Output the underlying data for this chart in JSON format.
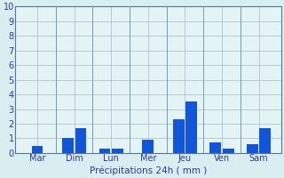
{
  "background_color": "#d8eef0",
  "plot_bg_color": "#e4f4f4",
  "grid_color": "#aab8c8",
  "bar_color": "#1155dd",
  "ylim": [
    0,
    10
  ],
  "yticks": [
    0,
    1,
    2,
    3,
    4,
    5,
    6,
    7,
    8,
    9,
    10
  ],
  "xlabel": "Précipitations 24h ( mm )",
  "xlabel_color": "#3333aa",
  "tick_color": "#3333aa",
  "tick_fontsize": 7,
  "xlabel_fontsize": 7.5,
  "groups": [
    {
      "label": "Mar",
      "values": [
        0.5
      ]
    },
    {
      "label": "Dim",
      "values": [
        1.0,
        1.7
      ]
    },
    {
      "label": "Lun",
      "values": [
        0.3,
        0.3
      ]
    },
    {
      "label": "Mer",
      "values": [
        0.9
      ]
    },
    {
      "label": "Jeu",
      "values": [
        2.3,
        3.5
      ]
    },
    {
      "label": "Ven",
      "values": [
        0.7,
        0.3
      ]
    },
    {
      "label": "Sam",
      "values": [
        0.6,
        1.7
      ]
    }
  ],
  "sep_color": "#7799aa",
  "spine_color": "#557799"
}
